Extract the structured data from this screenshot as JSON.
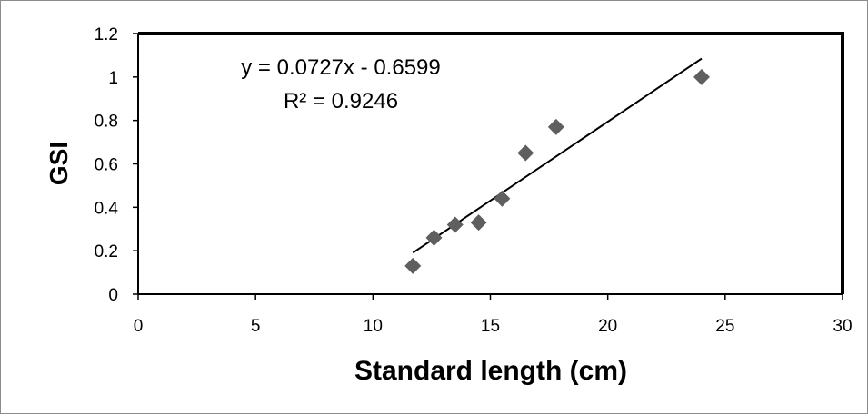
{
  "chart_data": {
    "type": "scatter",
    "xlabel": "Standard length (cm)",
    "ylabel": "GSI",
    "xlim": [
      0,
      30
    ],
    "ylim": [
      0,
      1.2
    ],
    "x_ticks": [
      "0",
      "5",
      "10",
      "15",
      "20",
      "25",
      "30"
    ],
    "y_ticks": [
      "0",
      "0.2",
      "0.4",
      "0.6",
      "0.8",
      "1",
      "1.2"
    ],
    "grid": false,
    "series": [
      {
        "marker": "diamond",
        "color": "#5f5f5f",
        "points": [
          {
            "x": 11.7,
            "y": 0.13
          },
          {
            "x": 12.6,
            "y": 0.26
          },
          {
            "x": 13.5,
            "y": 0.32
          },
          {
            "x": 14.5,
            "y": 0.33
          },
          {
            "x": 15.5,
            "y": 0.44
          },
          {
            "x": 16.5,
            "y": 0.65
          },
          {
            "x": 17.8,
            "y": 0.77
          },
          {
            "x": 24.0,
            "y": 1.0
          }
        ]
      }
    ],
    "trendline": {
      "type": "linear",
      "slope": 0.0727,
      "intercept": -0.6599,
      "x_range": [
        11.7,
        24.0
      ],
      "color": "#000000"
    },
    "annotations": {
      "equation": "y = 0.0727x - 0.6599",
      "r_squared": "R² = 0.9246"
    }
  }
}
